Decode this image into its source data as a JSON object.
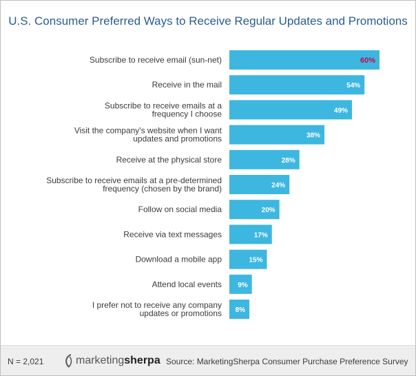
{
  "title": "U.S. Consumer Preferred Ways to Receive Regular Updates and Promotions",
  "chart_data": {
    "type": "bar",
    "orientation": "horizontal",
    "categories": [
      [
        "Subscribe to receive email (sun-net)"
      ],
      [
        "Receive in the mail"
      ],
      [
        "Subscribe to receive emails at a",
        "frequency I choose"
      ],
      [
        "Visit the company's website when I want",
        "updates and promotions"
      ],
      [
        "Receive at the physical store"
      ],
      [
        "Subscribe to receive emails at a pre-determined",
        "frequency (chosen by the brand)"
      ],
      [
        "Follow on social media"
      ],
      [
        "Receive via text messages"
      ],
      [
        "Download a mobile app"
      ],
      [
        "Attend local events"
      ],
      [
        "I prefer not to receive any company",
        "updates or promotions"
      ]
    ],
    "values": [
      60,
      54,
      49,
      38,
      28,
      24,
      20,
      17,
      15,
      9,
      8
    ],
    "value_labels": [
      "60%",
      "54%",
      "49%",
      "38%",
      "28%",
      "24%",
      "20%",
      "17%",
      "15%",
      "9%",
      "8%"
    ],
    "highlight_index": 0,
    "xlim": [
      0,
      60
    ],
    "grid": false,
    "legend": "none",
    "colors": {
      "bar": "#3db7e0",
      "label": "#ffffff",
      "highlight_label": "#c40a4e",
      "title": "#2a5d8f"
    }
  },
  "footer": {
    "n": "N = 2,021",
    "logo_part1": "marketing",
    "logo_part2": "sherpa",
    "source": "Source: MarketingSherpa Consumer Purchase Preference Survey"
  }
}
